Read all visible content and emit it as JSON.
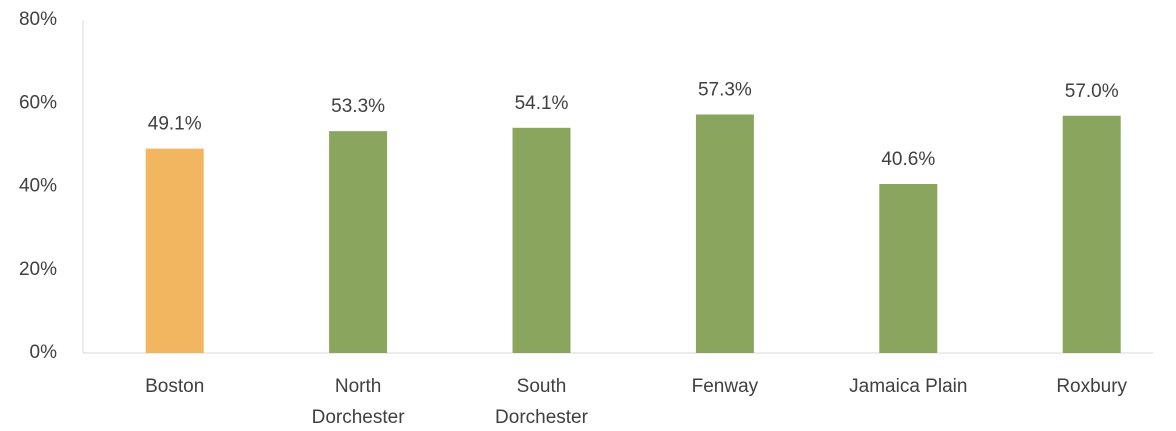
{
  "chart_data": {
    "type": "bar",
    "categories": [
      "Boston",
      "North Dorchester",
      "South Dorchester",
      "Fenway",
      "Jamaica Plain",
      "Roxbury"
    ],
    "values": [
      49.1,
      53.3,
      54.1,
      57.3,
      40.6,
      57.0
    ],
    "value_labels": [
      "49.1%",
      "53.3%",
      "54.1%",
      "57.3%",
      "40.6%",
      "57.0%"
    ],
    "colors": [
      "#f2b661",
      "#8aa65e",
      "#8aa65e",
      "#8aa65e",
      "#8aa65e",
      "#8aa65e"
    ],
    "ylim": [
      0,
      80
    ],
    "yticks": [
      {
        "value": 0,
        "label": "0%"
      },
      {
        "value": 20,
        "label": "20%"
      },
      {
        "value": 40,
        "label": "40%"
      },
      {
        "value": 60,
        "label": "60%"
      },
      {
        "value": 80,
        "label": "80%"
      }
    ],
    "grid": false
  }
}
